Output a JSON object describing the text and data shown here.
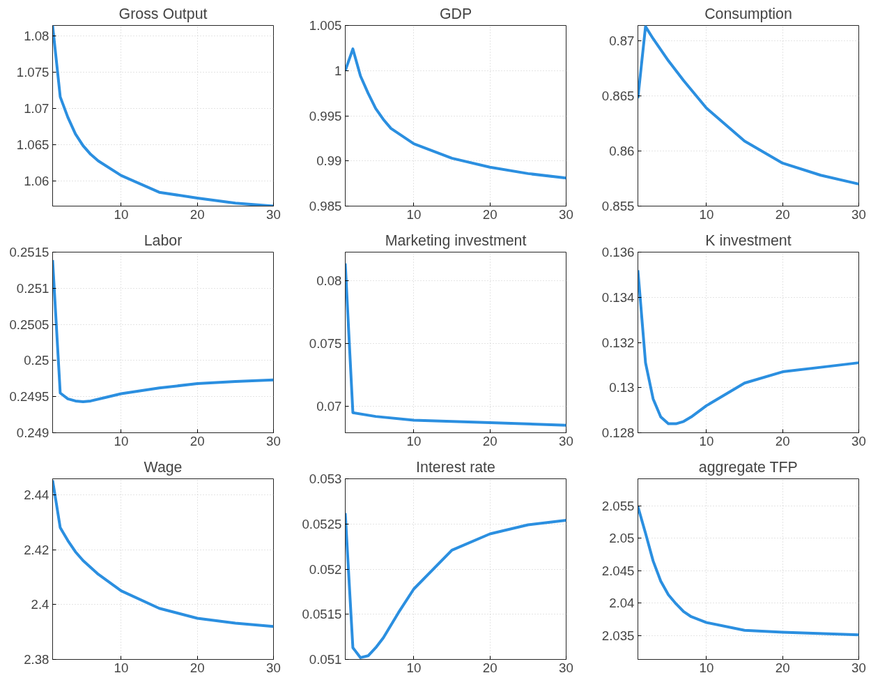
{
  "chart_data": [
    {
      "type": "line",
      "title": "Gross Output",
      "x": [
        1,
        2,
        3,
        4,
        5,
        6,
        7,
        10,
        15,
        20,
        25,
        30
      ],
      "series": [
        {
          "color": "#2b8fe0",
          "values": [
            1.0814,
            1.0716,
            1.0688,
            1.0665,
            1.0649,
            1.0637,
            1.0628,
            1.0608,
            1.0585,
            1.0577,
            1.057,
            1.0566
          ]
        }
      ],
      "xlim": [
        1,
        30
      ],
      "xticks": [
        10,
        20,
        30
      ],
      "ylim": [
        1.0566,
        1.0814
      ],
      "yticks": [
        1.06,
        1.065,
        1.07,
        1.075,
        1.08
      ],
      "grid": true
    },
    {
      "type": "line",
      "title": "GDP",
      "x": [
        1,
        2,
        3,
        4,
        5,
        6,
        7,
        10,
        15,
        20,
        25,
        30
      ],
      "series": [
        {
          "color": "#2b8fe0",
          "values": [
            1.0,
            1.0024,
            0.9994,
            0.9975,
            0.9958,
            0.9946,
            0.9936,
            0.9919,
            0.9903,
            0.9893,
            0.9886,
            0.9881
          ]
        }
      ],
      "xlim": [
        1,
        30
      ],
      "xticks": [
        10,
        20,
        30
      ],
      "ylim": [
        0.985,
        1.005
      ],
      "yticks": [
        0.985,
        0.99,
        0.995,
        1,
        1.005
      ],
      "grid": true
    },
    {
      "type": "line",
      "title": "Consumption",
      "x": [
        1,
        2,
        3,
        5,
        7,
        10,
        15,
        20,
        25,
        30
      ],
      "series": [
        {
          "color": "#2b8fe0",
          "values": [
            0.8648,
            0.8713,
            0.8702,
            0.8682,
            0.8664,
            0.8639,
            0.8609,
            0.8589,
            0.8578,
            0.857
          ]
        }
      ],
      "xlim": [
        1,
        30
      ],
      "xticks": [
        10,
        20,
        30
      ],
      "ylim": [
        0.855,
        0.8714
      ],
      "yticks": [
        0.855,
        0.86,
        0.865,
        0.87
      ],
      "grid": true
    },
    {
      "type": "line",
      "title": "Labor",
      "x": [
        1,
        2,
        3,
        4,
        5,
        6,
        8,
        10,
        15,
        20,
        25,
        30
      ],
      "series": [
        {
          "color": "#2b8fe0",
          "values": [
            0.25139,
            0.24955,
            0.24947,
            0.24944,
            0.24943,
            0.24944,
            0.24949,
            0.24954,
            0.24962,
            0.24968,
            0.24971,
            0.24973
          ]
        }
      ],
      "xlim": [
        1,
        30
      ],
      "xticks": [
        10,
        20,
        30
      ],
      "ylim": [
        0.249,
        0.2515
      ],
      "yticks": [
        0.249,
        0.2495,
        0.25,
        0.2505,
        0.251,
        0.2515
      ],
      "grid": true
    },
    {
      "type": "line",
      "title": "Marketing investment",
      "x": [
        1,
        2,
        5,
        10,
        20,
        30
      ],
      "series": [
        {
          "color": "#2b8fe0",
          "values": [
            0.0814,
            0.0695,
            0.0692,
            0.0689,
            0.0687,
            0.0685
          ]
        }
      ],
      "xlim": [
        1,
        30
      ],
      "xticks": [
        10,
        20,
        30
      ],
      "ylim": [
        0.0679,
        0.0823
      ],
      "yticks": [
        0.07,
        0.075,
        0.08
      ],
      "grid": true
    },
    {
      "type": "line",
      "title": "K investment",
      "x": [
        1,
        2,
        3,
        4,
        5,
        6,
        7,
        8,
        10,
        15,
        20,
        25,
        30
      ],
      "series": [
        {
          "color": "#2b8fe0",
          "values": [
            0.1352,
            0.1311,
            0.1295,
            0.1287,
            0.1284,
            0.1284,
            0.1285,
            0.1287,
            0.1292,
            0.1302,
            0.1307,
            0.1309,
            0.1311
          ]
        }
      ],
      "xlim": [
        1,
        30
      ],
      "xticks": [
        10,
        20,
        30
      ],
      "ylim": [
        0.128,
        0.136
      ],
      "yticks": [
        0.128,
        0.13,
        0.132,
        0.134,
        0.136
      ],
      "grid": true
    },
    {
      "type": "line",
      "title": "Wage",
      "x": [
        1,
        2,
        3,
        4,
        5,
        7,
        10,
        15,
        20,
        25,
        30
      ],
      "series": [
        {
          "color": "#2b8fe0",
          "values": [
            2.4453,
            2.428,
            2.4233,
            2.4192,
            2.416,
            2.411,
            2.405,
            2.3986,
            2.395,
            2.3932,
            2.392
          ]
        }
      ],
      "xlim": [
        1,
        30
      ],
      "xticks": [
        10,
        20,
        30
      ],
      "ylim": [
        2.38,
        2.4458
      ],
      "yticks": [
        2.38,
        2.4,
        2.42,
        2.44
      ],
      "grid": true
    },
    {
      "type": "line",
      "title": "Interest rate",
      "x": [
        1,
        2,
        3,
        4,
        5,
        6,
        8,
        10,
        15,
        20,
        25,
        30
      ],
      "series": [
        {
          "color": "#2b8fe0",
          "values": [
            0.05262,
            0.05113,
            0.05102,
            0.05104,
            0.05113,
            0.05124,
            0.05152,
            0.05178,
            0.05221,
            0.05239,
            0.05249,
            0.05254
          ]
        }
      ],
      "xlim": [
        1,
        30
      ],
      "xticks": [
        10,
        20,
        30
      ],
      "ylim": [
        0.051,
        0.053
      ],
      "yticks": [
        0.051,
        0.0515,
        0.052,
        0.0525,
        0.053
      ],
      "grid": true
    },
    {
      "type": "line",
      "title": "aggregate TFP",
      "x": [
        1,
        2,
        3,
        4,
        5,
        6,
        7,
        8,
        10,
        15,
        20,
        30
      ],
      "series": [
        {
          "color": "#2b8fe0",
          "values": [
            2.0549,
            2.0508,
            2.0465,
            2.0434,
            2.0413,
            2.0399,
            2.0387,
            2.0379,
            2.037,
            2.0358,
            2.0355,
            2.0351
          ]
        }
      ],
      "xlim": [
        1,
        30
      ],
      "xticks": [
        10,
        20,
        30
      ],
      "ylim": [
        2.0313,
        2.0592
      ],
      "yticks": [
        2.035,
        2.04,
        2.045,
        2.05,
        2.055
      ],
      "grid": true
    }
  ]
}
